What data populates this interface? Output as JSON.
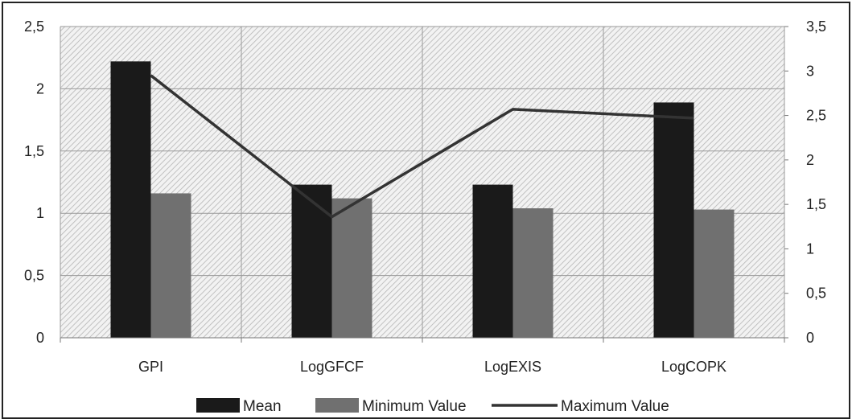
{
  "chart_data": {
    "type": "bar",
    "categories": [
      "GPI",
      "LogGFCF",
      "LogEXIS",
      "LogCOPK"
    ],
    "series": [
      {
        "name": "Mean",
        "kind": "bar",
        "axis": "left",
        "color": "#1a1a1a",
        "values": [
          2.22,
          1.23,
          1.23,
          1.89
        ]
      },
      {
        "name": "Minimum Value",
        "kind": "bar",
        "axis": "left",
        "color": "#707070",
        "values": [
          1.16,
          1.12,
          1.04,
          1.03
        ]
      },
      {
        "name": "Maximum Value",
        "kind": "line",
        "axis": "right",
        "color": "#333333",
        "values": [
          2.95,
          1.36,
          2.57,
          2.47
        ]
      }
    ],
    "ylim_left": [
      0,
      2.5
    ],
    "ylim_right": [
      0,
      3.5
    ],
    "yticks_left": [
      "0",
      "0,5",
      "1",
      "1,5",
      "2",
      "2,5"
    ],
    "yticks_right": [
      "0",
      "0,5",
      "1",
      "1,5",
      "2",
      "2,5",
      "3",
      "3,5"
    ],
    "grid": true,
    "legend_position": "bottom",
    "plot_background": "diagonal-hatch"
  }
}
